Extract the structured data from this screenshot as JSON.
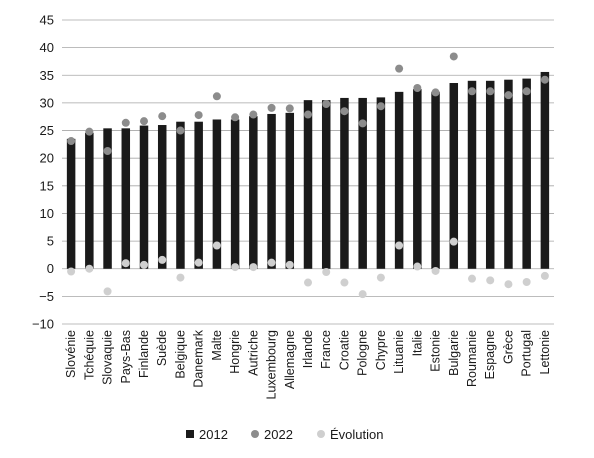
{
  "chart_data": {
    "type": "bar",
    "categories": [
      "Slovénie",
      "Tchéquie",
      "Slovaquie",
      "Pays-Bas",
      "Finlande",
      "Suède",
      "Belgique",
      "Danemark",
      "Malte",
      "Hongrie",
      "Autriche",
      "Luxembourg",
      "Allemagne",
      "Irlande",
      "France",
      "Croatie",
      "Pologne",
      "Chypre",
      "Lituanie",
      "Italie",
      "Estonie",
      "Bulgarie",
      "Roumanie",
      "Espagne",
      "Grèce",
      "Portugal",
      "Lettonie"
    ],
    "series": [
      {
        "name": "2012",
        "kind": "bar",
        "color": "#1a1a1a",
        "values": [
          23.5,
          24.6,
          25.4,
          25.4,
          25.9,
          26.0,
          26.6,
          26.6,
          27.0,
          27.0,
          27.6,
          28.0,
          28.2,
          30.5,
          30.5,
          30.9,
          30.9,
          31.0,
          32.0,
          32.5,
          32.0,
          33.6,
          34.0,
          34.0,
          34.2,
          34.4,
          35.6
        ]
      },
      {
        "name": "2022",
        "kind": "dot",
        "color": "#8c8c8c",
        "values": [
          23.1,
          24.8,
          21.3,
          26.4,
          26.7,
          27.6,
          25.0,
          27.8,
          31.2,
          27.4,
          27.9,
          29.1,
          29.0,
          27.9,
          29.8,
          28.5,
          26.3,
          29.4,
          36.2,
          32.7,
          31.9,
          38.4,
          32.1,
          32.1,
          31.4,
          32.1,
          34.2
        ]
      },
      {
        "name": "Évolution",
        "kind": "dot",
        "color": "#cfcfcf",
        "values": [
          -0.5,
          0.0,
          -4.1,
          1.0,
          0.7,
          1.6,
          -1.6,
          1.1,
          4.2,
          0.3,
          0.3,
          1.1,
          0.7,
          -2.5,
          -0.6,
          -2.5,
          -4.6,
          -1.6,
          4.2,
          0.4,
          -0.4,
          4.9,
          -1.8,
          -2.1,
          -2.8,
          -2.4,
          -1.3
        ]
      }
    ],
    "yticks": [
      -10,
      -5,
      0,
      5,
      10,
      15,
      20,
      25,
      30,
      35,
      40,
      45
    ],
    "ylim": [
      -10,
      45
    ],
    "grid": true,
    "legend_position": "bottom",
    "title": "",
    "xlabel": "",
    "ylabel": ""
  }
}
